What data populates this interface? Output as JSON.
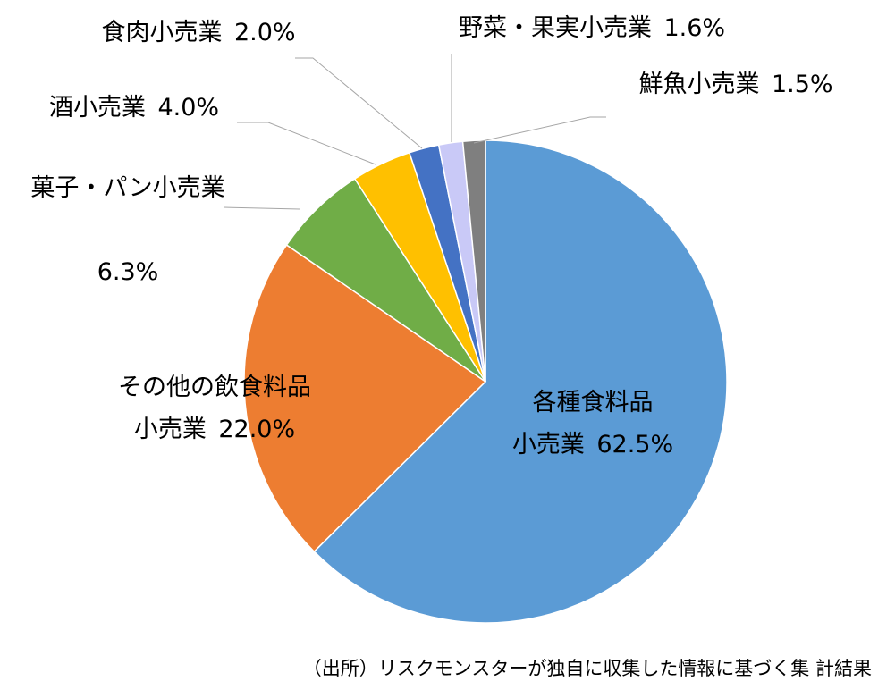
{
  "chart_data": {
    "type": "pie",
    "categories": [
      "各種食料品小売業",
      "その他の飲食料品小売業",
      "菓子・パン小売業",
      "酒小売業",
      "食肉小売業",
      "野菜・果実小売業",
      "鮮魚小売業"
    ],
    "values": [
      62.5,
      22.0,
      6.3,
      4.0,
      2.0,
      1.6,
      1.5
    ],
    "value_labels": [
      "62.5%",
      "22.0%",
      "6.3%",
      "4.0%",
      "2.0%",
      "1.6%",
      "1.5%"
    ],
    "colors": [
      "#5b9bd5",
      "#ed7d31",
      "#70ad47",
      "#ffc000",
      "#4472c4",
      "#c9c9f7",
      "#7f7f7f"
    ],
    "source": "（出所）リスクモンスターが独自に収集した情報に基づく集 計結果"
  }
}
